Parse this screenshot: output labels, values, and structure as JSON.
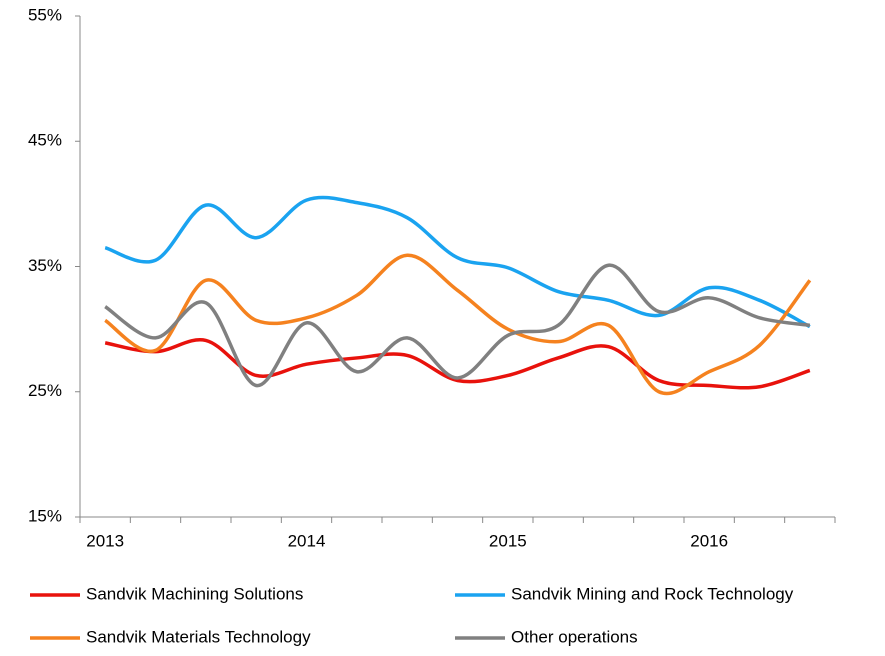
{
  "chart_data": {
    "type": "line",
    "categories": [
      "2013",
      null,
      null,
      null,
      "2014",
      null,
      null,
      null,
      "2015",
      null,
      null,
      null,
      "2016",
      null,
      null
    ],
    "series": [
      {
        "name": "Sandvik Machining Solutions",
        "color": "#e8120c",
        "values": [
          28.9,
          28.2,
          29.1,
          26.3,
          27.2,
          27.7,
          27.9,
          25.9,
          26.3,
          27.7,
          28.6,
          25.9,
          25.5,
          25.4,
          26.7
        ]
      },
      {
        "name": "Sandvik Mining and Rock Technology",
        "color": "#1aa3f0",
        "values": [
          36.5,
          35.5,
          39.9,
          37.3,
          40.3,
          40.1,
          38.9,
          35.7,
          34.9,
          33.0,
          32.3,
          31.1,
          33.3,
          32.3,
          30.2
        ]
      },
      {
        "name": "Sandvik Materials Technology",
        "color": "#f5821f",
        "values": [
          30.7,
          28.3,
          33.9,
          30.7,
          30.9,
          32.7,
          35.9,
          33.1,
          30.0,
          29.0,
          30.3,
          25.0,
          26.6,
          28.7,
          33.9
        ]
      },
      {
        "name": "Other operations",
        "color": "#808080",
        "values": [
          31.8,
          29.3,
          32.1,
          25.5,
          30.5,
          26.6,
          29.3,
          26.1,
          29.5,
          30.3,
          35.1,
          31.4,
          32.5,
          30.9,
          30.3
        ]
      }
    ],
    "ylim": [
      15,
      55
    ],
    "yticks": [
      {
        "value": 15,
        "label": "15%"
      },
      {
        "value": 25,
        "label": "25%"
      },
      {
        "value": 35,
        "label": "35%"
      },
      {
        "value": 45,
        "label": "45%"
      },
      {
        "value": 55,
        "label": "55%"
      }
    ],
    "grid": false
  }
}
